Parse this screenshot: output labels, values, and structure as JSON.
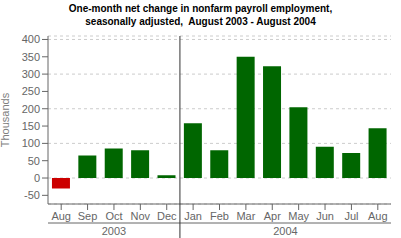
{
  "chart_data": {
    "type": "bar",
    "title": "One-month net change in nonfarm payroll employment,",
    "subtitle": "seasonally adjusted,  August 2003 - August 2004",
    "categories": [
      "Aug",
      "Sep",
      "Oct",
      "Nov",
      "Dec",
      "Jan",
      "Feb",
      "Mar",
      "Apr",
      "May",
      "Jun",
      "Jul",
      "Aug"
    ],
    "values": [
      -30,
      65,
      85,
      80,
      8,
      158,
      80,
      350,
      323,
      204,
      90,
      72,
      144
    ],
    "colors": [
      "#cc0000",
      "#006600",
      "#006600",
      "#006600",
      "#006600",
      "#006600",
      "#006600",
      "#006600",
      "#006600",
      "#006600",
      "#006600",
      "#006600",
      "#006600"
    ],
    "ylabel": "Thousands",
    "ylim": [
      -75,
      410
    ],
    "yticks": [
      -50,
      0,
      50,
      100,
      150,
      200,
      250,
      300,
      350,
      400
    ],
    "grid": true,
    "annotations": [
      {
        "text": "2003",
        "from": 0,
        "to": 4
      },
      {
        "text": "2004",
        "from": 5,
        "to": 12
      }
    ]
  }
}
